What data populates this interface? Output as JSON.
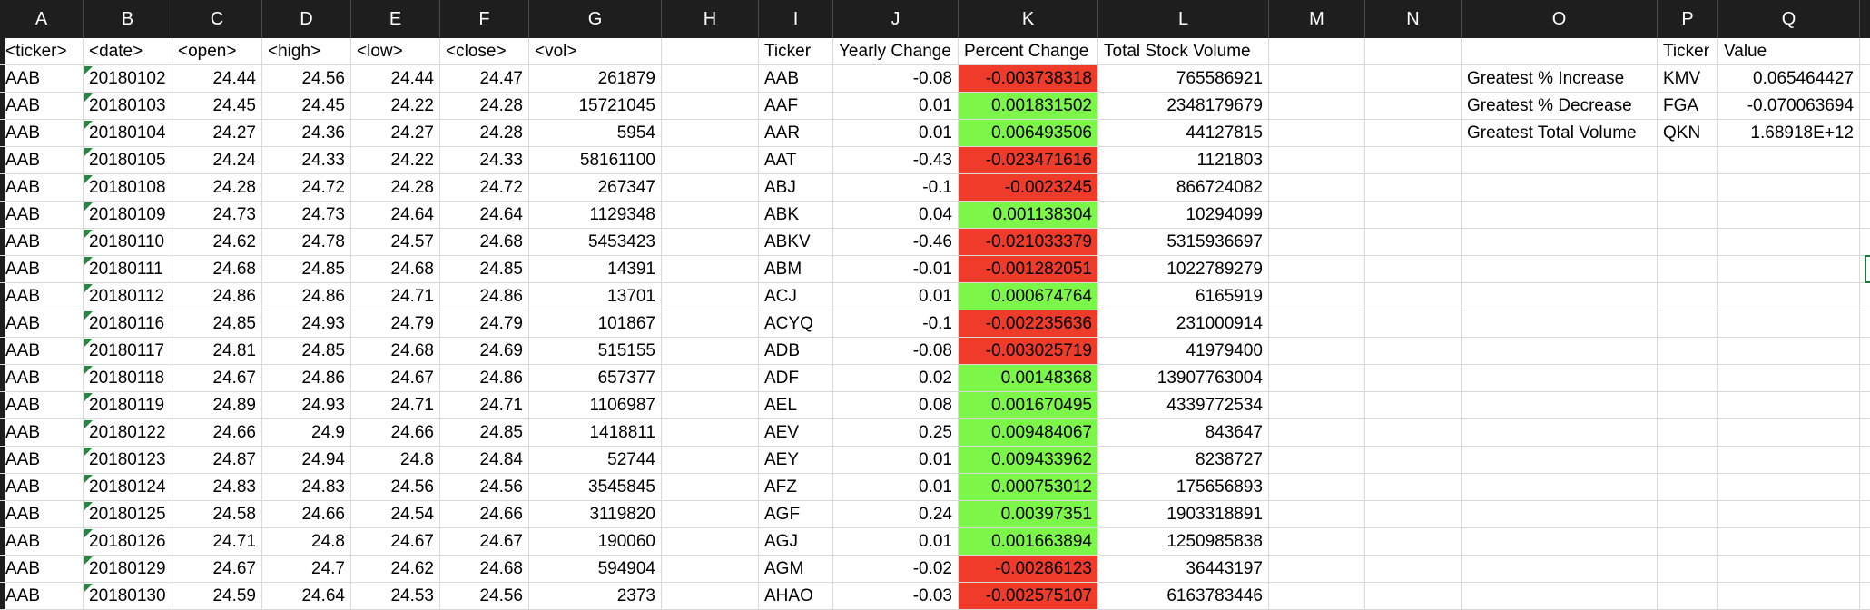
{
  "columns": [
    "A",
    "B",
    "C",
    "D",
    "E",
    "F",
    "G",
    "H",
    "I",
    "J",
    "K",
    "L",
    "M",
    "N",
    "O",
    "P",
    "Q"
  ],
  "colors": {
    "negative": "#ee3b2a",
    "positive": "#7df64a",
    "header_bg": "#1e1e1e"
  },
  "headers": {
    "A": "<ticker>",
    "B": "<date>",
    "C": "<open>",
    "D": "<high>",
    "E": "<low>",
    "F": "<close>",
    "G": "<vol>",
    "I": "Ticker",
    "J": "Yearly Change",
    "K": "Percent Change",
    "L": "Total Stock Volume",
    "P": "Ticker",
    "Q": "Value"
  },
  "raw_rows": [
    {
      "ticker": "AAB",
      "date": "20180102",
      "open": "24.44",
      "high": "24.56",
      "low": "24.44",
      "close": "24.47",
      "vol": "261879"
    },
    {
      "ticker": "AAB",
      "date": "20180103",
      "open": "24.45",
      "high": "24.45",
      "low": "24.22",
      "close": "24.28",
      "vol": "15721045"
    },
    {
      "ticker": "AAB",
      "date": "20180104",
      "open": "24.27",
      "high": "24.36",
      "low": "24.27",
      "close": "24.28",
      "vol": "5954"
    },
    {
      "ticker": "AAB",
      "date": "20180105",
      "open": "24.24",
      "high": "24.33",
      "low": "24.22",
      "close": "24.33",
      "vol": "58161100"
    },
    {
      "ticker": "AAB",
      "date": "20180108",
      "open": "24.28",
      "high": "24.72",
      "low": "24.28",
      "close": "24.72",
      "vol": "267347"
    },
    {
      "ticker": "AAB",
      "date": "20180109",
      "open": "24.73",
      "high": "24.73",
      "low": "24.64",
      "close": "24.64",
      "vol": "1129348"
    },
    {
      "ticker": "AAB",
      "date": "20180110",
      "open": "24.62",
      "high": "24.78",
      "low": "24.57",
      "close": "24.68",
      "vol": "5453423"
    },
    {
      "ticker": "AAB",
      "date": "20180111",
      "open": "24.68",
      "high": "24.85",
      "low": "24.68",
      "close": "24.85",
      "vol": "14391"
    },
    {
      "ticker": "AAB",
      "date": "20180112",
      "open": "24.86",
      "high": "24.86",
      "low": "24.71",
      "close": "24.86",
      "vol": "13701"
    },
    {
      "ticker": "AAB",
      "date": "20180116",
      "open": "24.85",
      "high": "24.93",
      "low": "24.79",
      "close": "24.79",
      "vol": "101867"
    },
    {
      "ticker": "AAB",
      "date": "20180117",
      "open": "24.81",
      "high": "24.85",
      "low": "24.68",
      "close": "24.69",
      "vol": "515155"
    },
    {
      "ticker": "AAB",
      "date": "20180118",
      "open": "24.67",
      "high": "24.86",
      "low": "24.67",
      "close": "24.86",
      "vol": "657377"
    },
    {
      "ticker": "AAB",
      "date": "20180119",
      "open": "24.89",
      "high": "24.93",
      "low": "24.71",
      "close": "24.71",
      "vol": "1106987"
    },
    {
      "ticker": "AAB",
      "date": "20180122",
      "open": "24.66",
      "high": "24.9",
      "low": "24.66",
      "close": "24.85",
      "vol": "1418811"
    },
    {
      "ticker": "AAB",
      "date": "20180123",
      "open": "24.87",
      "high": "24.94",
      "low": "24.8",
      "close": "24.84",
      "vol": "52744"
    },
    {
      "ticker": "AAB",
      "date": "20180124",
      "open": "24.83",
      "high": "24.83",
      "low": "24.56",
      "close": "24.56",
      "vol": "3545845"
    },
    {
      "ticker": "AAB",
      "date": "20180125",
      "open": "24.58",
      "high": "24.66",
      "low": "24.54",
      "close": "24.66",
      "vol": "3119820"
    },
    {
      "ticker": "AAB",
      "date": "20180126",
      "open": "24.71",
      "high": "24.8",
      "low": "24.67",
      "close": "24.67",
      "vol": "190060"
    },
    {
      "ticker": "AAB",
      "date": "20180129",
      "open": "24.67",
      "high": "24.7",
      "low": "24.62",
      "close": "24.68",
      "vol": "594904"
    },
    {
      "ticker": "AAB",
      "date": "20180130",
      "open": "24.59",
      "high": "24.64",
      "low": "24.53",
      "close": "24.56",
      "vol": "2373"
    }
  ],
  "summary_rows": [
    {
      "ticker": "AAB",
      "yearly_change": "-0.08",
      "percent_change": "-0.003738318",
      "total_volume": "765586921",
      "sign": "neg"
    },
    {
      "ticker": "AAF",
      "yearly_change": "0.01",
      "percent_change": "0.001831502",
      "total_volume": "2348179679",
      "sign": "pos"
    },
    {
      "ticker": "AAR",
      "yearly_change": "0.01",
      "percent_change": "0.006493506",
      "total_volume": "44127815",
      "sign": "pos"
    },
    {
      "ticker": "AAT",
      "yearly_change": "-0.43",
      "percent_change": "-0.023471616",
      "total_volume": "1121803",
      "sign": "neg"
    },
    {
      "ticker": "ABJ",
      "yearly_change": "-0.1",
      "percent_change": "-0.0023245",
      "total_volume": "866724082",
      "sign": "neg"
    },
    {
      "ticker": "ABK",
      "yearly_change": "0.04",
      "percent_change": "0.001138304",
      "total_volume": "10294099",
      "sign": "pos"
    },
    {
      "ticker": "ABKV",
      "yearly_change": "-0.46",
      "percent_change": "-0.021033379",
      "total_volume": "5315936697",
      "sign": "neg"
    },
    {
      "ticker": "ABM",
      "yearly_change": "-0.01",
      "percent_change": "-0.001282051",
      "total_volume": "1022789279",
      "sign": "neg"
    },
    {
      "ticker": "ACJ",
      "yearly_change": "0.01",
      "percent_change": "0.000674764",
      "total_volume": "6165919",
      "sign": "pos"
    },
    {
      "ticker": "ACYQ",
      "yearly_change": "-0.1",
      "percent_change": "-0.002235636",
      "total_volume": "231000914",
      "sign": "neg"
    },
    {
      "ticker": "ADB",
      "yearly_change": "-0.08",
      "percent_change": "-0.003025719",
      "total_volume": "41979400",
      "sign": "neg"
    },
    {
      "ticker": "ADF",
      "yearly_change": "0.02",
      "percent_change": "0.00148368",
      "total_volume": "13907763004",
      "sign": "pos"
    },
    {
      "ticker": "AEL",
      "yearly_change": "0.08",
      "percent_change": "0.001670495",
      "total_volume": "4339772534",
      "sign": "pos"
    },
    {
      "ticker": "AEV",
      "yearly_change": "0.25",
      "percent_change": "0.009484067",
      "total_volume": "843647",
      "sign": "pos"
    },
    {
      "ticker": "AEY",
      "yearly_change": "0.01",
      "percent_change": "0.009433962",
      "total_volume": "8238727",
      "sign": "pos"
    },
    {
      "ticker": "AFZ",
      "yearly_change": "0.01",
      "percent_change": "0.000753012",
      "total_volume": "175656893",
      "sign": "pos"
    },
    {
      "ticker": "AGF",
      "yearly_change": "0.24",
      "percent_change": "0.00397351",
      "total_volume": "1903318891",
      "sign": "pos"
    },
    {
      "ticker": "AGJ",
      "yearly_change": "0.01",
      "percent_change": "0.001663894",
      "total_volume": "1250985838",
      "sign": "pos"
    },
    {
      "ticker": "AGM",
      "yearly_change": "-0.02",
      "percent_change": "-0.00286123",
      "total_volume": "36443197",
      "sign": "neg"
    },
    {
      "ticker": "AHAO",
      "yearly_change": "-0.03",
      "percent_change": "-0.002575107",
      "total_volume": "6163783446",
      "sign": "neg"
    }
  ],
  "greatest": [
    {
      "label": "Greatest % Increase",
      "ticker": "KMV",
      "value": "0.065464427"
    },
    {
      "label": "Greatest % Decrease",
      "ticker": "FGA",
      "value": "-0.070063694"
    },
    {
      "label": "Greatest Total Volume",
      "ticker": "QKN",
      "value": "1.68918E+12"
    }
  ]
}
